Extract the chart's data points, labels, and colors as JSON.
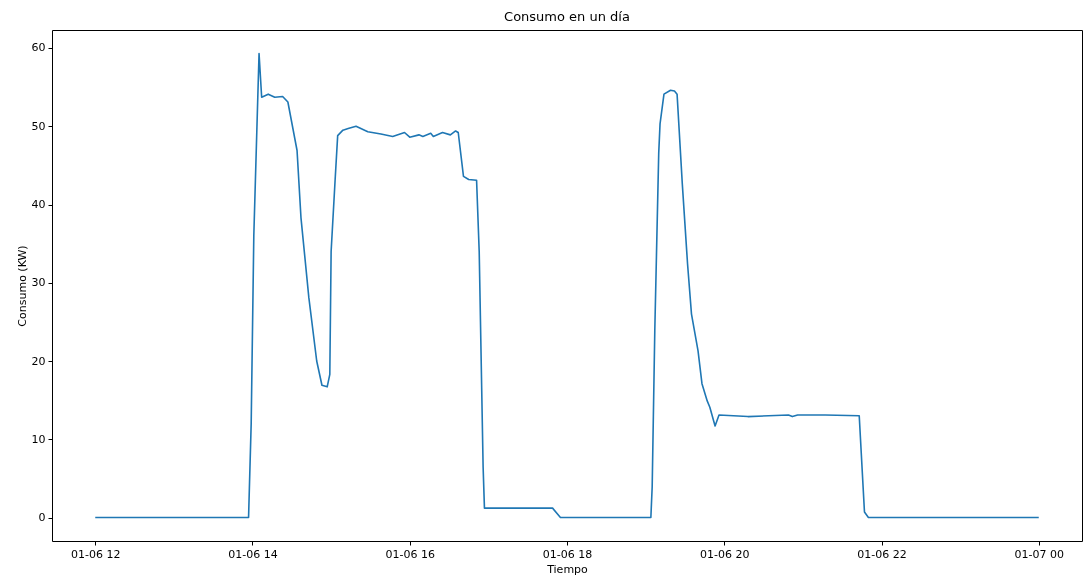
{
  "chart_data": {
    "type": "line",
    "title": "Consumo en un día",
    "xlabel": "Tiempo",
    "ylabel": "Consumo (KW)",
    "xlim": [
      "--01-06T11:27",
      "--01-07T00:33"
    ],
    "ylim": [
      -3,
      62.3
    ],
    "xticks": [
      {
        "value": "--01-06T12:00",
        "label": "01-06 12"
      },
      {
        "value": "--01-06T14:00",
        "label": "01-06 14"
      },
      {
        "value": "--01-06T16:00",
        "label": "01-06 16"
      },
      {
        "value": "--01-06T18:00",
        "label": "01-06 18"
      },
      {
        "value": "--01-06T20:00",
        "label": "01-06 20"
      },
      {
        "value": "--01-06T22:00",
        "label": "01-06 22"
      },
      {
        "value": "--01-07T00:00",
        "label": "01-07 00"
      }
    ],
    "yticks": [
      0,
      10,
      20,
      30,
      40,
      50,
      60
    ],
    "series": [
      {
        "color": "#1f77b4",
        "x": [
          "--01-06T12:00",
          "--01-06T13:57",
          "--01-06T13:59",
          "--01-06T14:01",
          "--01-06T14:05",
          "--01-06T14:07",
          "--01-06T14:12",
          "--01-06T14:17",
          "--01-06T14:23",
          "--01-06T14:27",
          "--01-06T14:34",
          "--01-06T14:37",
          "--01-06T14:43",
          "--01-06T14:49",
          "--01-06T14:53",
          "--01-06T14:57",
          "--01-06T14:59",
          "--01-06T15:00",
          "--01-06T15:03",
          "--01-06T15:05",
          "--01-06T15:09",
          "--01-06T15:13",
          "--01-06T15:19",
          "--01-06T15:28",
          "--01-06T15:38",
          "--01-06T15:47",
          "--01-06T15:56",
          "--01-06T16:00",
          "--01-06T16:07",
          "--01-06T16:10",
          "--01-06T16:16",
          "--01-06T16:18",
          "--01-06T16:25",
          "--01-06T16:31",
          "--01-06T16:35",
          "--01-06T16:37",
          "--01-06T16:41",
          "--01-06T16:45",
          "--01-06T16:51",
          "--01-06T16:53",
          "--01-06T16:56",
          "--01-06T16:57",
          "--01-06T17:49",
          "--01-06T17:55",
          "--01-06T19:04",
          "--01-06T19:05",
          "--01-06T19:07",
          "--01-06T19:10",
          "--01-06T19:11",
          "--01-06T19:14",
          "--01-06T19:19",
          "--01-06T19:22",
          "--01-06T19:24",
          "--01-06T19:28",
          "--01-06T19:32",
          "--01-06T19:35",
          "--01-06T19:40",
          "--01-06T19:43",
          "--01-06T19:47",
          "--01-06T19:49",
          "--01-06T19:53",
          "--01-06T19:56",
          "--01-06T20:18",
          "--01-06T20:49",
          "--01-06T20:52",
          "--01-06T20:56",
          "--01-06T21:17",
          "--01-06T21:43",
          "--01-06T21:47",
          "--01-06T21:50",
          "--01-07T00:00"
        ],
        "values": [
          0,
          0,
          12,
          36,
          59.3,
          53.7,
          54.1,
          53.7,
          53.8,
          53.1,
          46.9,
          38.3,
          28.1,
          20.0,
          16.9,
          16.7,
          18.3,
          34,
          43.0,
          48.8,
          49.5,
          49.7,
          50.0,
          49.3,
          49.0,
          48.7,
          49.2,
          48.6,
          48.9,
          48.7,
          49.1,
          48.7,
          49.2,
          48.9,
          49.4,
          49.2,
          43.6,
          43.2,
          43.1,
          34,
          6.4,
          1.2,
          1.2,
          0,
          0,
          3.9,
          23.9,
          46.6,
          50.3,
          54.1,
          54.6,
          54.5,
          54.1,
          42.6,
          32.4,
          26.0,
          21.3,
          17.1,
          14.9,
          14.1,
          11.7,
          13.1,
          12.9,
          13.1,
          12.9,
          13.1,
          13.1,
          13.0,
          0.7,
          0,
          0
        ]
      }
    ]
  }
}
